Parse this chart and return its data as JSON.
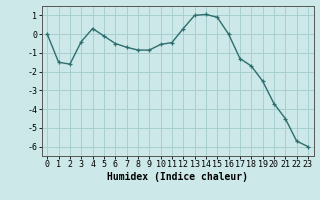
{
  "x": [
    0,
    1,
    2,
    3,
    4,
    5,
    6,
    7,
    8,
    9,
    10,
    11,
    12,
    13,
    14,
    15,
    16,
    17,
    18,
    19,
    20,
    21,
    22,
    23
  ],
  "y": [
    0.0,
    -1.5,
    -1.6,
    -0.4,
    0.3,
    -0.1,
    -0.5,
    -0.7,
    -0.85,
    -0.85,
    -0.55,
    -0.45,
    0.3,
    1.0,
    1.05,
    0.9,
    0.0,
    -1.3,
    -1.7,
    -2.5,
    -3.7,
    -4.5,
    -5.7,
    -6.0
  ],
  "xlabel": "Humidex (Indice chaleur)",
  "ylabel": "",
  "xlim": [
    -0.5,
    23.5
  ],
  "ylim": [
    -6.5,
    1.5
  ],
  "yticks": [
    -6,
    -5,
    -4,
    -3,
    -2,
    -1,
    0,
    1
  ],
  "xticks": [
    0,
    1,
    2,
    3,
    4,
    5,
    6,
    7,
    8,
    9,
    10,
    11,
    12,
    13,
    14,
    15,
    16,
    17,
    18,
    19,
    20,
    21,
    22,
    23
  ],
  "line_color": "#2d6e6e",
  "marker": "+",
  "bg_color": "#cce8e8",
  "grid_color": "#a8d0d0",
  "title_fontsize": 6,
  "xlabel_fontsize": 7,
  "tick_fontsize": 6
}
